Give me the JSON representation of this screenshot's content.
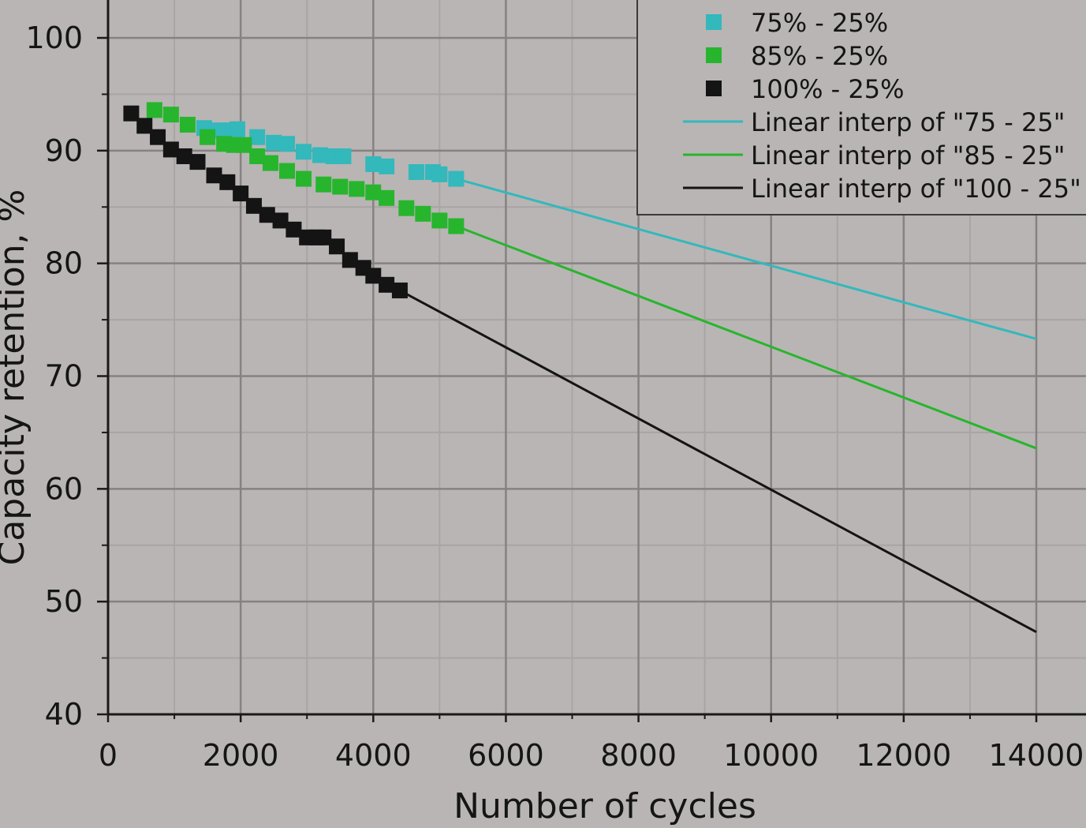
{
  "chart_data": {
    "type": "scatter",
    "title": "",
    "xlabel": "Number of cycles",
    "ylabel": "Capacity retention, %",
    "xlim": [
      0,
      14000
    ],
    "ylim": [
      40,
      100
    ],
    "x_ticks": [
      0,
      2000,
      4000,
      6000,
      8000,
      10000,
      12000,
      14000
    ],
    "y_ticks": [
      40,
      50,
      60,
      70,
      80,
      90,
      100
    ],
    "grid": true,
    "legend_position": "top-right",
    "series": [
      {
        "name": "75% - 25%",
        "type": "scatter",
        "color": "#33b8bc",
        "marker": "square",
        "x": [
          1450,
          1650,
          1850,
          1950,
          2250,
          2500,
          2700,
          2950,
          3200,
          3400,
          3550,
          4000,
          4200,
          4650,
          4900,
          5000,
          5250
        ],
        "y": [
          92.0,
          91.8,
          91.8,
          91.9,
          91.2,
          90.7,
          90.6,
          89.9,
          89.6,
          89.5,
          89.5,
          88.8,
          88.6,
          88.1,
          88.1,
          87.9,
          87.5
        ]
      },
      {
        "name": "85% - 25%",
        "type": "scatter",
        "color": "#27b52d",
        "marker": "square",
        "x": [
          700,
          950,
          1200,
          1500,
          1750,
          1900,
          2050,
          2250,
          2450,
          2700,
          2950,
          3250,
          3500,
          3750,
          4000,
          4200,
          4500,
          4750,
          5000,
          5250
        ],
        "y": [
          93.6,
          93.2,
          92.3,
          91.2,
          90.6,
          90.5,
          90.5,
          89.5,
          88.9,
          88.2,
          87.5,
          87.0,
          86.8,
          86.6,
          86.3,
          85.8,
          84.9,
          84.4,
          83.8,
          83.3
        ]
      },
      {
        "name": "100% - 25%",
        "type": "scatter",
        "color": "#141414",
        "marker": "square",
        "x": [
          350,
          550,
          750,
          950,
          1150,
          1350,
          1600,
          1800,
          2000,
          2200,
          2400,
          2600,
          2800,
          3000,
          3150,
          3250,
          3450,
          3650,
          3850,
          4000,
          4200,
          4400
        ],
        "y": [
          93.3,
          92.2,
          91.2,
          90.1,
          89.5,
          89.0,
          87.8,
          87.2,
          86.2,
          85.1,
          84.3,
          83.8,
          83.0,
          82.3,
          82.3,
          82.3,
          81.5,
          80.3,
          79.6,
          78.9,
          78.1,
          77.6
        ]
      },
      {
        "name": "Linear interp of \"75 - 25\"",
        "type": "line",
        "color": "#33b8bc",
        "x": [
          5250,
          14000
        ],
        "y": [
          87.5,
          73.3
        ]
      },
      {
        "name": "Linear interp of \"85 - 25\"",
        "type": "line",
        "color": "#27b52d",
        "x": [
          5250,
          14000
        ],
        "y": [
          83.3,
          63.6
        ]
      },
      {
        "name": "Linear interp of \"100 - 25\"",
        "type": "line",
        "color": "#141414",
        "x": [
          4400,
          14000
        ],
        "y": [
          77.6,
          47.3
        ]
      }
    ]
  }
}
